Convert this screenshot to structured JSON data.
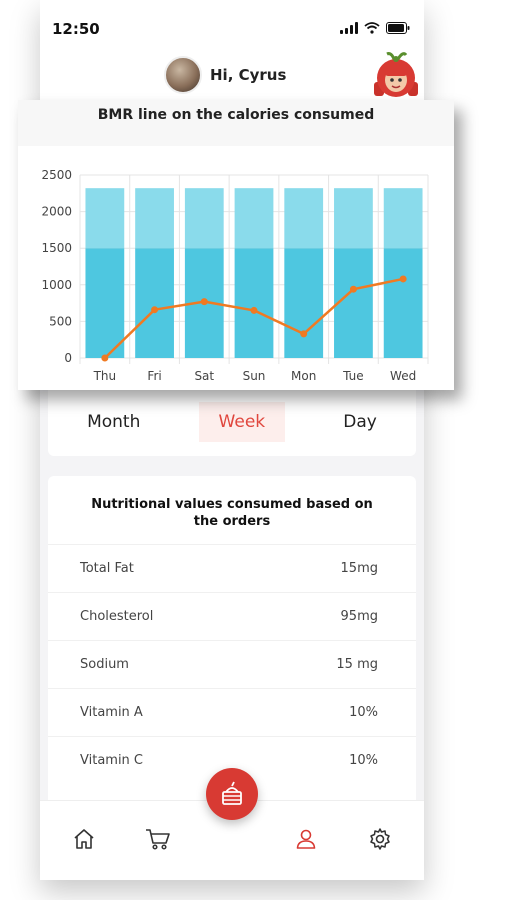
{
  "status_bar": {
    "time": "12:50"
  },
  "header": {
    "greeting": "Hi, Cyrus"
  },
  "chart": {
    "title": "BMR line on the calories consumed"
  },
  "chart_data": {
    "type": "bar",
    "title": "BMR line on the calories consumed",
    "categories": [
      "Thu",
      "Fri",
      "Sat",
      "Sun",
      "Mon",
      "Tue",
      "Wed"
    ],
    "series": [
      {
        "type": "bar",
        "values": [
          1500,
          1500,
          1500,
          1500,
          1500,
          1500,
          1500
        ],
        "color": "#4ec7e0"
      },
      {
        "type": "bar",
        "values": [
          820,
          820,
          820,
          820,
          820,
          820,
          820
        ],
        "color": "#8adbeb"
      },
      {
        "type": "line",
        "values": [
          0,
          660,
          770,
          650,
          330,
          940,
          1080
        ],
        "color": "#f07a22"
      }
    ],
    "stacked": true,
    "ylim": [
      0,
      2500
    ],
    "yticks": [
      0,
      500,
      1000,
      1500,
      2000,
      2500
    ],
    "grid": true
  },
  "period_tabs": {
    "month": "Month",
    "week": "Week",
    "day": "Day",
    "active": "Week"
  },
  "nutrition": {
    "title": "Nutritional values consumed based on the orders",
    "rows": [
      {
        "label": "Total Fat",
        "value": "15mg"
      },
      {
        "label": "Cholesterol",
        "value": "95mg"
      },
      {
        "label": "Sodium",
        "value": "15 mg"
      },
      {
        "label": "Vitamin A",
        "value": "10%"
      },
      {
        "label": "Vitamin C",
        "value": "10%"
      }
    ]
  },
  "nav": {
    "items": [
      "home-icon",
      "cart-icon",
      "profile-icon",
      "settings-icon"
    ],
    "active": "profile-icon",
    "accent": "#d83a33"
  }
}
